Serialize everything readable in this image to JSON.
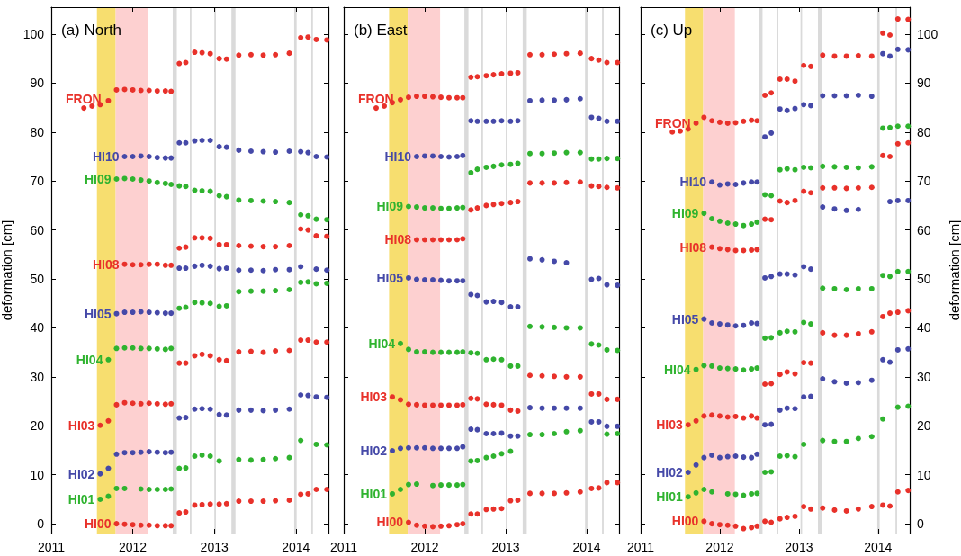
{
  "chart_data": [
    {
      "type": "scatter",
      "title": "(a) North",
      "ylabel": "deformation [cm]",
      "marker": "circle",
      "x": [
        2011.4,
        2011.5,
        2011.6,
        2011.7,
        2011.8,
        2011.9,
        2012.0,
        2012.1,
        2012.2,
        2012.3,
        2012.4,
        2012.47,
        2012.57,
        2012.65,
        2012.76,
        2012.85,
        2012.95,
        2013.06,
        2013.15,
        2013.3,
        2013.45,
        2013.6,
        2013.75,
        2013.92,
        2014.06,
        2014.15,
        2014.25,
        2014.38
      ],
      "xlim": [
        2011,
        2014.4
      ],
      "xticks": [
        2011,
        2012,
        2013,
        2014
      ],
      "ylim": [
        -2,
        105.5
      ],
      "yticks": [
        0,
        10,
        20,
        30,
        40,
        50,
        60,
        70,
        80,
        90,
        100
      ],
      "bands": [
        {
          "axis": "x",
          "from": 2011.56,
          "to": 2011.79,
          "color": "#f7de6f"
        },
        {
          "axis": "x",
          "from": 2011.79,
          "to": 2012.19,
          "color": "#fdd0d0"
        },
        {
          "axis": "x",
          "from": 2012.49,
          "to": 2012.54,
          "color": "#dadada"
        },
        {
          "axis": "x",
          "from": 2012.7,
          "to": 2012.72,
          "color": "#dadada"
        },
        {
          "axis": "x",
          "from": 2013.0,
          "to": 2013.02,
          "color": "#dadada"
        },
        {
          "axis": "x",
          "from": 2013.21,
          "to": 2013.26,
          "color": "#dadada"
        },
        {
          "axis": "x",
          "from": 2013.98,
          "to": 2014.01,
          "color": "#dadada"
        },
        {
          "axis": "x",
          "from": 2014.19,
          "to": 2014.21,
          "color": "#dadada"
        }
      ],
      "series": [
        {
          "name": "FRON",
          "color": "#e8312a",
          "values": [
            84.9,
            85.3,
            85.6,
            86.4,
            88.6,
            88.7,
            88.6,
            88.5,
            88.5,
            88.4,
            88.4,
            88.3,
            94.0,
            94.2,
            96.3,
            96.2,
            96.0,
            95.0,
            94.9,
            95.7,
            95.8,
            95.7,
            95.8,
            96.1,
            99.3,
            99.4,
            98.9,
            98.8
          ]
        },
        {
          "name": "HI10",
          "color": "#4549a8",
          "values": [
            null,
            null,
            null,
            null,
            null,
            75.0,
            75.0,
            75.1,
            75.0,
            74.8,
            74.7,
            74.7,
            77.8,
            77.8,
            78.2,
            78.3,
            78.3,
            77.0,
            76.9,
            76.3,
            76.1,
            76.0,
            75.9,
            76.1,
            76.0,
            75.8,
            75.0,
            74.9
          ]
        },
        {
          "name": "HI09",
          "color": "#2fb32f",
          "values": [
            null,
            null,
            null,
            null,
            70.4,
            70.5,
            70.4,
            70.2,
            70.0,
            69.7,
            69.5,
            69.3,
            69.0,
            68.9,
            68.1,
            68.0,
            67.9,
            67.0,
            66.8,
            66.1,
            66.0,
            65.9,
            65.8,
            65.6,
            63.1,
            62.9,
            62.2,
            62.1
          ]
        },
        {
          "name": "HI08",
          "color": "#e8312a",
          "values": [
            null,
            null,
            null,
            null,
            null,
            53.0,
            52.9,
            52.9,
            53.0,
            53.0,
            52.8,
            52.8,
            56.3,
            56.5,
            58.4,
            58.4,
            58.3,
            57.0,
            57.0,
            56.8,
            56.7,
            56.6,
            56.6,
            56.8,
            60.2,
            60.0,
            58.8,
            58.7
          ]
        },
        {
          "name": "HI05",
          "color": "#4549a8",
          "values": [
            null,
            null,
            null,
            null,
            42.9,
            43.2,
            43.2,
            43.3,
            43.2,
            43.1,
            43.0,
            43.0,
            52.2,
            52.2,
            52.6,
            52.8,
            52.6,
            52.1,
            52.2,
            51.8,
            51.8,
            51.7,
            51.9,
            51.9,
            52.5,
            null,
            52.0,
            51.8
          ]
        },
        {
          "name": "HI04",
          "color": "#2fb32f",
          "values": [
            null,
            null,
            null,
            33.5,
            35.8,
            35.9,
            35.9,
            35.8,
            35.8,
            35.7,
            35.6,
            35.8,
            44.0,
            44.2,
            45.2,
            45.1,
            45.0,
            44.4,
            44.5,
            47.4,
            47.5,
            47.5,
            47.6,
            47.8,
            49.3,
            49.4,
            49.0,
            49.1
          ]
        },
        {
          "name": "HI03",
          "color": "#e8312a",
          "values": [
            null,
            null,
            20.1,
            21.0,
            24.3,
            24.7,
            24.6,
            24.5,
            24.6,
            24.5,
            24.4,
            24.5,
            32.8,
            32.8,
            34.3,
            34.6,
            34.3,
            33.5,
            33.3,
            35.1,
            35.2,
            35.0,
            35.3,
            35.4,
            37.5,
            37.5,
            37.1,
            37.1
          ]
        },
        {
          "name": "HI02",
          "color": "#4549a8",
          "values": [
            null,
            null,
            10.2,
            11.3,
            14.2,
            14.5,
            14.5,
            14.6,
            14.7,
            14.6,
            14.5,
            14.6,
            21.6,
            21.7,
            23.4,
            23.5,
            23.4,
            22.3,
            22.2,
            23.2,
            23.2,
            23.1,
            23.2,
            23.4,
            26.3,
            26.2,
            25.9,
            25.8
          ]
        },
        {
          "name": "HI01",
          "color": "#2fb32f",
          "values": [
            null,
            null,
            5.0,
            5.6,
            7.2,
            7.2,
            null,
            7.1,
            7.0,
            7.0,
            7.0,
            7.1,
            11.3,
            11.4,
            13.8,
            14.0,
            13.8,
            12.8,
            null,
            13.1,
            13.0,
            13.1,
            13.3,
            13.5,
            17.0,
            null,
            16.2,
            16.1
          ]
        },
        {
          "name": "HI00",
          "color": "#e8312a",
          "values": [
            null,
            null,
            null,
            null,
            0.0,
            -0.1,
            -0.2,
            -0.3,
            -0.3,
            -0.4,
            -0.4,
            -0.4,
            2.2,
            2.4,
            3.8,
            3.9,
            4.0,
            4.0,
            4.1,
            4.6,
            4.6,
            4.6,
            4.7,
            4.8,
            6.0,
            6.1,
            7.0,
            7.0
          ]
        }
      ]
    },
    {
      "type": "scatter",
      "title": "(b) East",
      "marker": "circle",
      "tick_labels": "x",
      "x": [
        2011.4,
        2011.5,
        2011.6,
        2011.7,
        2011.8,
        2011.9,
        2012.0,
        2012.1,
        2012.2,
        2012.3,
        2012.4,
        2012.47,
        2012.57,
        2012.65,
        2012.76,
        2012.85,
        2012.95,
        2013.06,
        2013.15,
        2013.3,
        2013.45,
        2013.6,
        2013.75,
        2013.92,
        2014.06,
        2014.15,
        2014.25,
        2014.38
      ],
      "xlim": [
        2011,
        2014.4
      ],
      "xticks": [
        2011,
        2012,
        2013,
        2014
      ],
      "ylim": [
        -2,
        105.5
      ],
      "yticks": [
        0,
        10,
        20,
        30,
        40,
        50,
        60,
        70,
        80,
        90,
        100
      ],
      "bands": [
        {
          "axis": "x",
          "from": 2011.56,
          "to": 2011.79,
          "color": "#f7de6f"
        },
        {
          "axis": "x",
          "from": 2011.79,
          "to": 2012.19,
          "color": "#fdd0d0"
        },
        {
          "axis": "x",
          "from": 2012.49,
          "to": 2012.54,
          "color": "#dadada"
        },
        {
          "axis": "x",
          "from": 2012.7,
          "to": 2012.72,
          "color": "#dadada"
        },
        {
          "axis": "x",
          "from": 2013.0,
          "to": 2013.02,
          "color": "#dadada"
        },
        {
          "axis": "x",
          "from": 2013.21,
          "to": 2013.26,
          "color": "#dadada"
        },
        {
          "axis": "x",
          "from": 2013.98,
          "to": 2014.01,
          "color": "#dadada"
        },
        {
          "axis": "x",
          "from": 2014.19,
          "to": 2014.21,
          "color": "#dadada"
        }
      ],
      "series": [
        {
          "name": "FRON",
          "color": "#e8312a",
          "values": [
            84.9,
            85.3,
            86.0,
            86.6,
            87.1,
            87.3,
            87.3,
            87.2,
            87.1,
            87.0,
            87.0,
            87.0,
            91.2,
            91.3,
            91.5,
            91.7,
            91.9,
            92.0,
            92.1,
            95.8,
            95.8,
            95.9,
            96.0,
            96.1,
            95.0,
            94.7,
            94.2,
            94.2
          ]
        },
        {
          "name": "HI10",
          "color": "#4549a8",
          "values": [
            null,
            null,
            null,
            null,
            null,
            75.0,
            75.1,
            75.1,
            75.0,
            74.9,
            75.0,
            75.2,
            82.3,
            82.2,
            82.2,
            82.2,
            82.3,
            82.2,
            82.3,
            86.4,
            86.5,
            86.5,
            86.6,
            86.8,
            83.0,
            82.8,
            82.2,
            82.2
          ]
        },
        {
          "name": "HI09",
          "color": "#2fb32f",
          "values": [
            null,
            null,
            null,
            null,
            64.8,
            64.7,
            64.5,
            64.5,
            64.4,
            64.4,
            64.5,
            64.6,
            71.7,
            72.4,
            72.8,
            73.0,
            73.3,
            73.4,
            73.6,
            75.6,
            75.6,
            75.7,
            75.8,
            75.8,
            74.5,
            74.5,
            74.6,
            74.6
          ]
        },
        {
          "name": "HI08",
          "color": "#e8312a",
          "values": [
            null,
            null,
            null,
            null,
            null,
            58.0,
            58.0,
            58.0,
            58.0,
            58.0,
            58.0,
            58.2,
            64.1,
            64.5,
            65.0,
            65.2,
            65.4,
            65.6,
            65.8,
            69.6,
            69.6,
            69.6,
            69.7,
            69.8,
            69.0,
            68.9,
            68.7,
            68.6
          ]
        },
        {
          "name": "HI05",
          "color": "#4549a8",
          "values": [
            null,
            null,
            null,
            null,
            50.2,
            49.9,
            49.8,
            49.8,
            49.7,
            49.6,
            49.6,
            49.6,
            46.8,
            46.6,
            45.3,
            45.4,
            45.2,
            44.3,
            44.3,
            54.1,
            53.9,
            53.6,
            53.3,
            null,
            49.9,
            50.1,
            48.8,
            48.7
          ]
        },
        {
          "name": "HI04",
          "color": "#2fb32f",
          "values": [
            null,
            null,
            null,
            36.8,
            35.6,
            35.1,
            35.1,
            35.0,
            35.0,
            35.0,
            35.0,
            35.1,
            34.9,
            34.8,
            33.5,
            33.6,
            33.5,
            32.2,
            32.2,
            40.3,
            40.2,
            40.1,
            40.0,
            40.0,
            36.7,
            36.5,
            35.5,
            35.4
          ]
        },
        {
          "name": "HI03",
          "color": "#e8312a",
          "values": [
            null,
            null,
            25.9,
            25.3,
            24.4,
            24.3,
            24.2,
            24.2,
            24.2,
            24.2,
            24.2,
            24.3,
            25.6,
            25.5,
            24.4,
            24.3,
            24.2,
            23.2,
            23.0,
            30.3,
            30.2,
            30.1,
            30.0,
            30.0,
            26.5,
            26.5,
            25.4,
            25.4
          ]
        },
        {
          "name": "HI02",
          "color": "#4549a8",
          "values": [
            null,
            null,
            14.9,
            15.4,
            15.5,
            15.5,
            15.5,
            15.4,
            15.4,
            15.4,
            15.4,
            15.7,
            19.3,
            19.2,
            18.4,
            18.4,
            18.5,
            17.9,
            17.9,
            23.7,
            23.6,
            23.6,
            23.6,
            23.6,
            20.8,
            20.8,
            19.9,
            19.9
          ]
        },
        {
          "name": "HI01",
          "color": "#2fb32f",
          "values": [
            null,
            null,
            6.1,
            7.0,
            8.0,
            8.1,
            null,
            7.8,
            7.9,
            7.9,
            7.9,
            8.0,
            12.8,
            12.9,
            13.5,
            13.8,
            14.3,
            14.8,
            null,
            18.2,
            18.2,
            18.4,
            18.8,
            19.0,
            null,
            null,
            18.3,
            18.4
          ]
        },
        {
          "name": "HI00",
          "color": "#e8312a",
          "values": [
            null,
            null,
            null,
            null,
            0.3,
            -0.3,
            -0.5,
            -0.6,
            -0.5,
            -0.4,
            -0.2,
            0.0,
            2.0,
            2.0,
            2.9,
            3.0,
            3.1,
            4.7,
            4.8,
            6.2,
            6.2,
            6.2,
            6.3,
            6.5,
            7.2,
            7.3,
            8.4,
            8.4
          ]
        }
      ]
    },
    {
      "type": "scatter",
      "title": "(c) Up",
      "y2label": "deformation [cm]",
      "marker": "circle",
      "x": [
        2011.4,
        2011.5,
        2011.6,
        2011.7,
        2011.8,
        2011.9,
        2012.0,
        2012.1,
        2012.2,
        2012.3,
        2012.4,
        2012.47,
        2012.57,
        2012.65,
        2012.76,
        2012.85,
        2012.95,
        2013.06,
        2013.15,
        2013.3,
        2013.45,
        2013.6,
        2013.75,
        2013.92,
        2014.06,
        2014.15,
        2014.25,
        2014.38
      ],
      "xlim": [
        2011,
        2014.4
      ],
      "xticks": [
        2011,
        2012,
        2013,
        2014
      ],
      "y2lim": [
        -2,
        105.5
      ],
      "y2ticks": [
        0,
        10,
        20,
        30,
        40,
        50,
        60,
        70,
        80,
        90,
        100
      ],
      "bands": [
        {
          "axis": "x",
          "from": 2011.56,
          "to": 2011.79,
          "color": "#f7de6f"
        },
        {
          "axis": "x",
          "from": 2011.79,
          "to": 2012.19,
          "color": "#fdd0d0"
        },
        {
          "axis": "x",
          "from": 2012.49,
          "to": 2012.54,
          "color": "#dadada"
        },
        {
          "axis": "x",
          "from": 2012.72,
          "to": 2012.74,
          "color": "#dadada"
        },
        {
          "axis": "x",
          "from": 2013.02,
          "to": 2013.04,
          "color": "#dadada"
        },
        {
          "axis": "x",
          "from": 2013.24,
          "to": 2013.29,
          "color": "#dadada"
        },
        {
          "axis": "x",
          "from": 2013.99,
          "to": 2014.02,
          "color": "#dadada"
        },
        {
          "axis": "x",
          "from": 2014.22,
          "to": 2014.24,
          "color": "#dadada"
        }
      ],
      "series": [
        {
          "name": "FRON",
          "color": "#e8312a",
          "axis": "y2",
          "values": [
            80.0,
            80.2,
            80.6,
            81.8,
            83.0,
            82.3,
            82.0,
            81.8,
            81.9,
            82.2,
            82.4,
            82.3,
            87.5,
            88.0,
            90.8,
            90.8,
            90.4,
            93.6,
            93.4,
            95.7,
            95.5,
            95.5,
            95.6,
            95.5,
            100.2,
            99.8,
            103.1,
            103.0
          ]
        },
        {
          "name": "HI10",
          "color": "#4549a8",
          "axis": "y2",
          "values": [
            null,
            null,
            null,
            null,
            null,
            69.8,
            69.2,
            69.4,
            69.3,
            69.6,
            69.8,
            69.8,
            79.0,
            79.8,
            84.7,
            84.4,
            84.8,
            85.6,
            85.4,
            87.4,
            87.4,
            87.4,
            87.5,
            87.3,
            96.0,
            95.5,
            96.9,
            96.8
          ]
        },
        {
          "name": "HI09",
          "color": "#2fb32f",
          "axis": "y2",
          "values": [
            null,
            null,
            null,
            null,
            63.4,
            62.3,
            61.8,
            61.4,
            61.2,
            60.9,
            61.2,
            61.6,
            67.2,
            67.0,
            72.3,
            72.5,
            72.3,
            72.8,
            72.7,
            73.0,
            72.9,
            72.8,
            72.7,
            72.9,
            80.8,
            80.9,
            81.2,
            81.2
          ]
        },
        {
          "name": "HI08",
          "color": "#e8312a",
          "axis": "y2",
          "values": [
            null,
            null,
            null,
            null,
            null,
            56.5,
            56.2,
            56.0,
            55.8,
            55.8,
            55.9,
            56.0,
            62.2,
            62.1,
            65.9,
            65.6,
            66.0,
            67.9,
            67.6,
            68.6,
            68.6,
            68.5,
            68.6,
            68.7,
            75.2,
            75.0,
            77.6,
            77.8
          ]
        },
        {
          "name": "HI05",
          "color": "#4549a8",
          "axis": "y2",
          "values": [
            null,
            null,
            null,
            null,
            41.8,
            41.0,
            40.8,
            40.6,
            40.4,
            40.5,
            41.0,
            40.9,
            50.2,
            50.5,
            51.0,
            51.0,
            50.8,
            52.5,
            52.0,
            64.7,
            64.3,
            64.0,
            64.2,
            null,
            null,
            65.8,
            66.0,
            66.0
          ]
        },
        {
          "name": "HI04",
          "color": "#2fb32f",
          "axis": "y2",
          "values": [
            null,
            null,
            null,
            31.5,
            32.3,
            32.2,
            31.8,
            31.7,
            31.6,
            31.4,
            31.6,
            31.8,
            37.9,
            38.0,
            39.0,
            39.3,
            39.2,
            41.1,
            40.8,
            48.1,
            48.0,
            47.8,
            48.0,
            48.0,
            50.7,
            50.5,
            51.5,
            51.5
          ]
        },
        {
          "name": "HI03",
          "color": "#e8312a",
          "axis": "y2",
          "values": [
            null,
            null,
            20.2,
            21.0,
            22.0,
            22.2,
            22.0,
            21.8,
            21.9,
            21.6,
            22.0,
            21.6,
            28.5,
            28.6,
            30.5,
            31.0,
            30.6,
            32.9,
            32.8,
            39.0,
            38.5,
            38.5,
            38.8,
            39.2,
            42.3,
            43.0,
            43.2,
            43.5
          ]
        },
        {
          "name": "HI02",
          "color": "#4549a8",
          "axis": "y2",
          "values": [
            null,
            null,
            10.5,
            12.0,
            13.5,
            14.0,
            13.5,
            13.7,
            13.8,
            13.6,
            13.5,
            14.2,
            20.2,
            20.3,
            23.2,
            23.6,
            23.5,
            25.9,
            26.0,
            29.6,
            29.0,
            28.7,
            28.8,
            29.3,
            33.5,
            33.0,
            35.5,
            35.7
          ]
        },
        {
          "name": "HI01",
          "color": "#2fb32f",
          "axis": "y2",
          "values": [
            null,
            null,
            5.5,
            6.3,
            7.0,
            6.5,
            null,
            6.1,
            6.0,
            5.8,
            6.1,
            6.2,
            10.5,
            10.6,
            13.8,
            13.9,
            13.7,
            16.2,
            null,
            17.0,
            16.8,
            16.8,
            17.4,
            17.8,
            21.4,
            null,
            23.8,
            24.0
          ]
        },
        {
          "name": "HI00",
          "color": "#e8312a",
          "axis": "y2",
          "values": [
            null,
            null,
            null,
            null,
            0.5,
            0.0,
            -0.2,
            -0.3,
            -0.5,
            -1.0,
            -0.8,
            -0.5,
            0.5,
            0.3,
            1.0,
            1.3,
            1.5,
            3.5,
            3.0,
            3.2,
            2.8,
            2.6,
            3.0,
            3.5,
            3.8,
            3.6,
            6.5,
            6.8
          ]
        }
      ]
    }
  ]
}
